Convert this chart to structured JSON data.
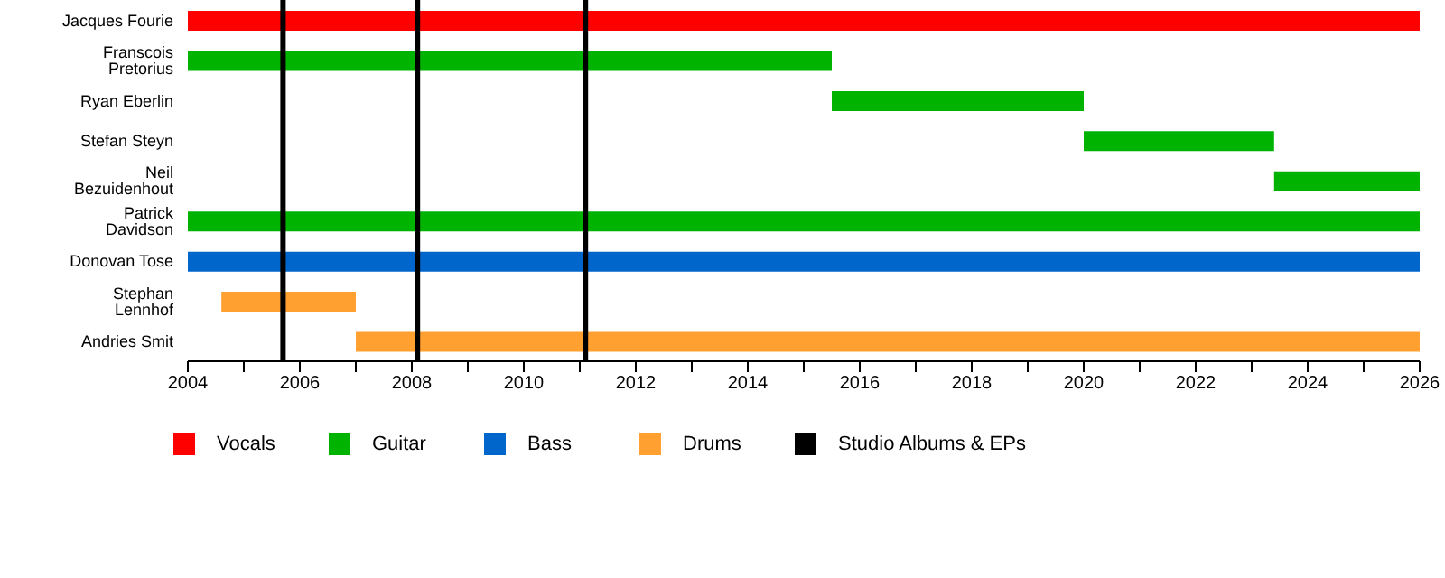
{
  "chart_data": {
    "type": "bar",
    "orientation": "horizontal",
    "categories": [
      "Jacques Fourie",
      "Franscois Pretorius",
      "Ryan Eberlin",
      "Stefan Steyn",
      "Neil Bezuidenhout",
      "Patrick Davidson",
      "Donovan Tose",
      "Stephan Lennhof",
      "Andries Smit"
    ],
    "series": [
      {
        "name": "Vocals",
        "color": "#ff0000",
        "base": [
          2004,
          null,
          null,
          null,
          null,
          null,
          null,
          null,
          null
        ],
        "values": [
          22,
          null,
          null,
          null,
          null,
          null,
          null,
          null,
          null
        ]
      },
      {
        "name": "Guitar",
        "color": "#00b300",
        "base": [
          null,
          2004,
          2015.5,
          2020,
          2023.4,
          2004,
          null,
          null,
          null
        ],
        "values": [
          null,
          11.5,
          4.5,
          3.4,
          2.6,
          22,
          null,
          null,
          null
        ]
      },
      {
        "name": "Bass",
        "color": "#0066cc",
        "base": [
          null,
          null,
          null,
          null,
          null,
          null,
          2004,
          null,
          null
        ],
        "values": [
          null,
          null,
          null,
          null,
          null,
          null,
          22,
          null,
          null
        ]
      },
      {
        "name": "Drums",
        "color": "#ffa030",
        "base": [
          null,
          null,
          null,
          null,
          null,
          null,
          null,
          2004.6,
          2007
        ],
        "values": [
          null,
          null,
          null,
          null,
          null,
          null,
          null,
          2.4,
          19
        ]
      }
    ],
    "ref_lines": [
      {
        "axis": "x",
        "value": 2005.7,
        "label": "Studio Albums & EPs",
        "color": "#000000"
      },
      {
        "axis": "x",
        "value": 2008.1,
        "color": "#000000"
      },
      {
        "axis": "x",
        "value": 2011.1,
        "color": "#000000"
      }
    ],
    "xlim": [
      2004,
      2026
    ],
    "xticks": [
      2004,
      {
        "value": 2005,
        "label": null
      },
      2006,
      {
        "value": 2007,
        "label": null
      },
      2008,
      {
        "value": 2009,
        "label": null
      },
      2010,
      {
        "value": 2011,
        "label": null
      },
      2012,
      {
        "value": 2013,
        "label": null
      },
      2014,
      {
        "value": 2015,
        "label": null
      },
      2016,
      {
        "value": 2017,
        "label": null
      },
      2018,
      {
        "value": 2019,
        "label": null
      },
      2020,
      {
        "value": 2021,
        "label": null
      },
      2022,
      {
        "value": 2023,
        "label": null
      },
      2024,
      {
        "value": 2025,
        "label": null
      },
      2026
    ],
    "grid": false,
    "legend": "bottom"
  }
}
